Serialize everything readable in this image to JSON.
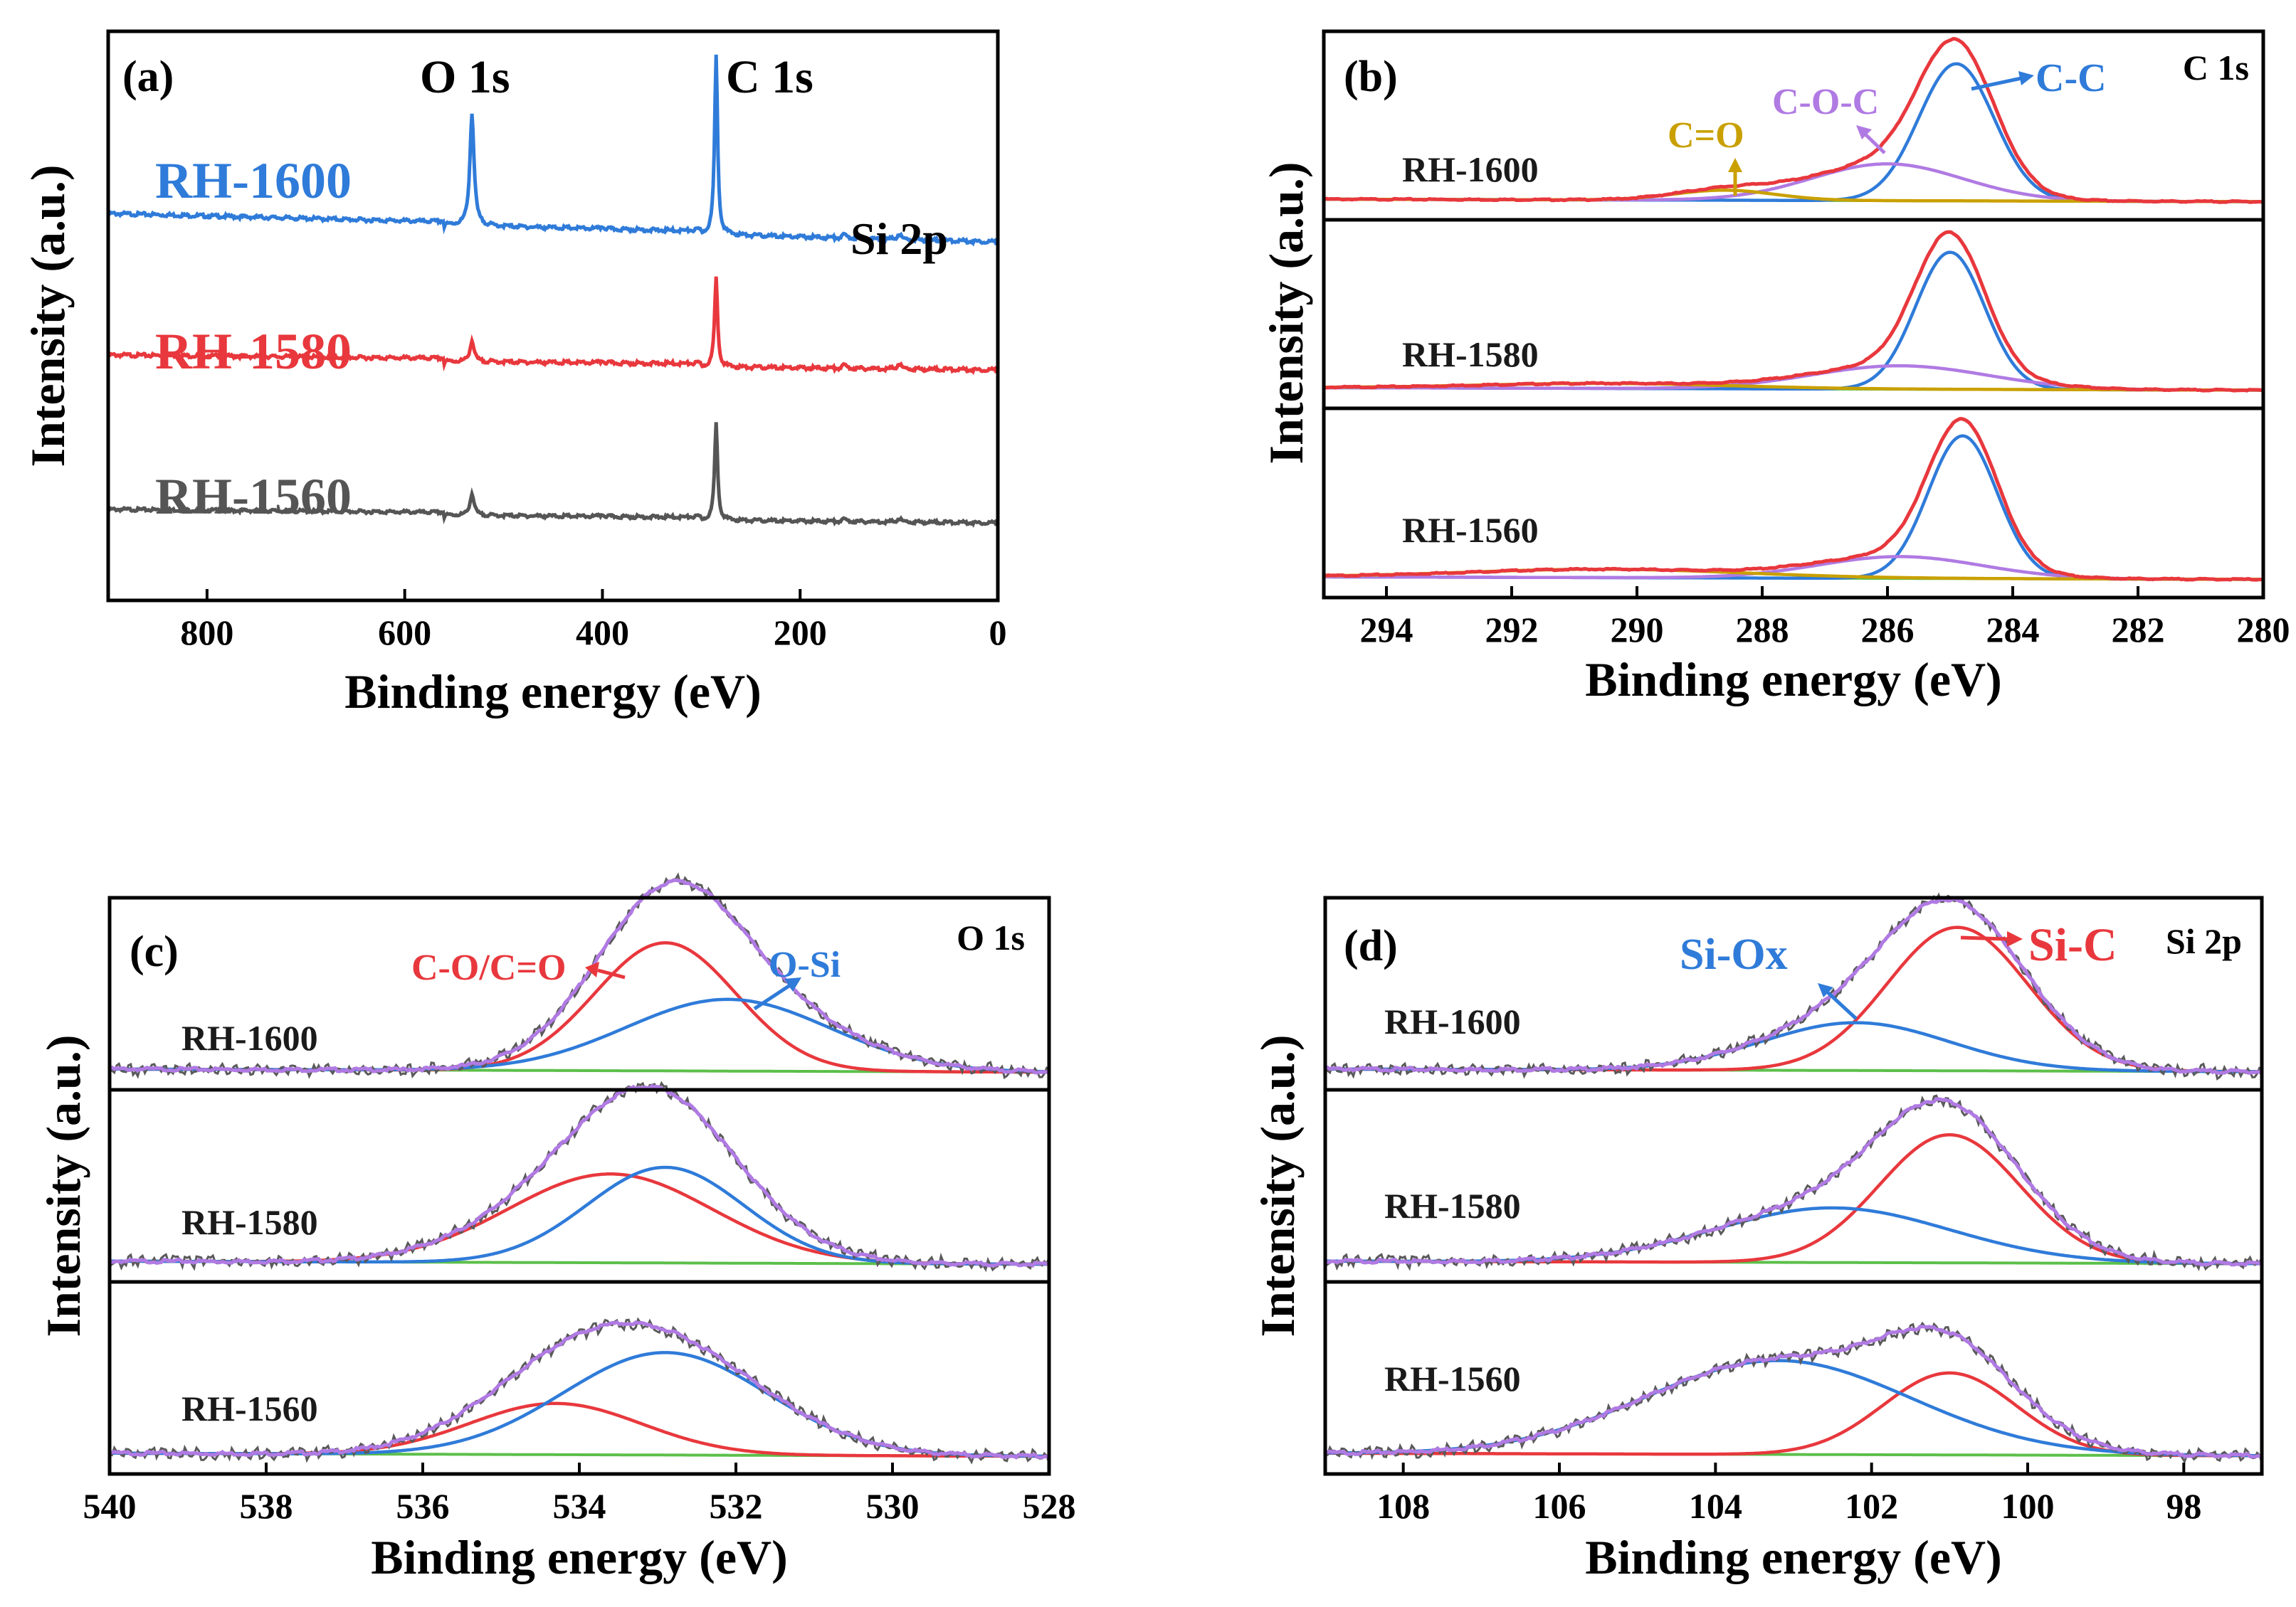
{
  "colors": {
    "blue": "#2f7bd9",
    "red": "#e8383d",
    "gray": "#555555",
    "purple": "#b07ae3",
    "green": "#5cbf4a",
    "gold": "#c9a000",
    "darkgray": "#5a5a5a"
  },
  "chart_data": [
    {
      "panel": "(a)",
      "type": "line",
      "title": "",
      "xlabel": "Binding energy (eV)",
      "ylabel": "Intensity (a.u.)",
      "xlim": [
        900,
        0
      ],
      "xticks": [
        "800",
        "600",
        "400",
        "200",
        "0"
      ],
      "peak_labels": [
        "O 1s",
        "C 1s",
        "Si 2p"
      ],
      "series": [
        {
          "name": "RH-1600",
          "color": "#2f7bd9",
          "base": 0.8,
          "slope": 0.15,
          "o1s": 0.75,
          "c1s": 1.2,
          "si": 0.04
        },
        {
          "name": "RH-1580",
          "color": "#e8383d",
          "base": 0.48,
          "slope": 0.06,
          "o1s": 0.14,
          "c1s": 0.6,
          "si": 0.04
        },
        {
          "name": "RH-1560",
          "color": "#555555",
          "base": 0.1,
          "slope": 0.06,
          "o1s": 0.16,
          "c1s": 0.72,
          "si": 0.03
        }
      ]
    },
    {
      "panel": "(b)",
      "type": "line",
      "core_level": "C 1s",
      "xlabel": "Binding energy (eV)",
      "ylabel": "Intensity (a.u.)",
      "xlim": [
        295,
        280
      ],
      "xticks": [
        "294",
        "292",
        "290",
        "288",
        "286",
        "284",
        "282",
        "280"
      ],
      "annotations": [
        "C=O",
        "C-O-C",
        "C-C"
      ],
      "samples": [
        {
          "name": "RH-1600",
          "components": [
            {
              "label": "C-C",
              "center": 284.9,
              "height": 0.82,
              "width": 0.6
            },
            {
              "label": "C-O-C",
              "center": 286.0,
              "height": 0.22,
              "width": 1.2
            },
            {
              "label": "C=O",
              "center": 288.6,
              "height": 0.06,
              "width": 0.8
            }
          ]
        },
        {
          "name": "RH-1580",
          "components": [
            {
              "label": "C-C",
              "center": 285.0,
              "height": 0.82,
              "width": 0.55
            },
            {
              "label": "C-O-C",
              "center": 285.8,
              "height": 0.14,
              "width": 1.4
            },
            {
              "label": "C=O",
              "center": 290.5,
              "height": 0.03,
              "width": 2.0
            }
          ]
        },
        {
          "name": "RH-1560",
          "components": [
            {
              "label": "C-C",
              "center": 284.8,
              "height": 0.85,
              "width": 0.55
            },
            {
              "label": "C-O-C",
              "center": 285.8,
              "height": 0.13,
              "width": 1.3
            },
            {
              "label": "C=O",
              "center": 290.5,
              "height": 0.05,
              "width": 2.2
            }
          ]
        }
      ]
    },
    {
      "panel": "(c)",
      "type": "line",
      "core_level": "O 1s",
      "xlabel": "Binding energy (eV)",
      "ylabel": "Intensity (a.u.)",
      "xlim": [
        540,
        528
      ],
      "xticks": [
        "540",
        "538",
        "536",
        "534",
        "532",
        "530",
        "528"
      ],
      "annotations": [
        "C-O/C=O",
        "O-Si"
      ],
      "samples": [
        {
          "name": "RH-1600",
          "components": [
            {
              "label": "C-O/C=O",
              "center": 532.9,
              "height": 0.75,
              "width": 0.9
            },
            {
              "label": "O-Si",
              "center": 532.1,
              "height": 0.42,
              "width": 1.3
            }
          ]
        },
        {
          "name": "RH-1580",
          "components": [
            {
              "label": "C-O/C=O",
              "center": 533.6,
              "height": 0.52,
              "width": 1.3
            },
            {
              "label": "O-Si",
              "center": 532.9,
              "height": 0.56,
              "width": 1.0
            }
          ]
        },
        {
          "name": "RH-1560",
          "components": [
            {
              "label": "C-O/C=O",
              "center": 534.3,
              "height": 0.3,
              "width": 1.1
            },
            {
              "label": "O-Si",
              "center": 532.9,
              "height": 0.6,
              "width": 1.3
            }
          ]
        }
      ]
    },
    {
      "panel": "(d)",
      "type": "line",
      "core_level": "Si 2p",
      "xlabel": "Binding energy (eV)",
      "ylabel": "Intensity (a.u.)",
      "xlim": [
        109,
        97
      ],
      "xticks": [
        "108",
        "106",
        "104",
        "102",
        "100",
        "98"
      ],
      "annotations": [
        "Si-Ox",
        "Si-C"
      ],
      "samples": [
        {
          "name": "RH-1600",
          "components": [
            {
              "label": "Si-C",
              "center": 100.9,
              "height": 0.84,
              "width": 0.9
            },
            {
              "label": "Si-Ox",
              "center": 102.2,
              "height": 0.28,
              "width": 1.2
            }
          ]
        },
        {
          "name": "RH-1580",
          "components": [
            {
              "label": "Si-C",
              "center": 101.0,
              "height": 0.75,
              "width": 0.9
            },
            {
              "label": "Si-Ox",
              "center": 102.5,
              "height": 0.32,
              "width": 1.5
            }
          ]
        },
        {
          "name": "RH-1560",
          "components": [
            {
              "label": "Si-C",
              "center": 101.0,
              "height": 0.48,
              "width": 0.85
            },
            {
              "label": "Si-Ox",
              "center": 103.2,
              "height": 0.55,
              "width": 1.7
            }
          ]
        }
      ]
    }
  ]
}
